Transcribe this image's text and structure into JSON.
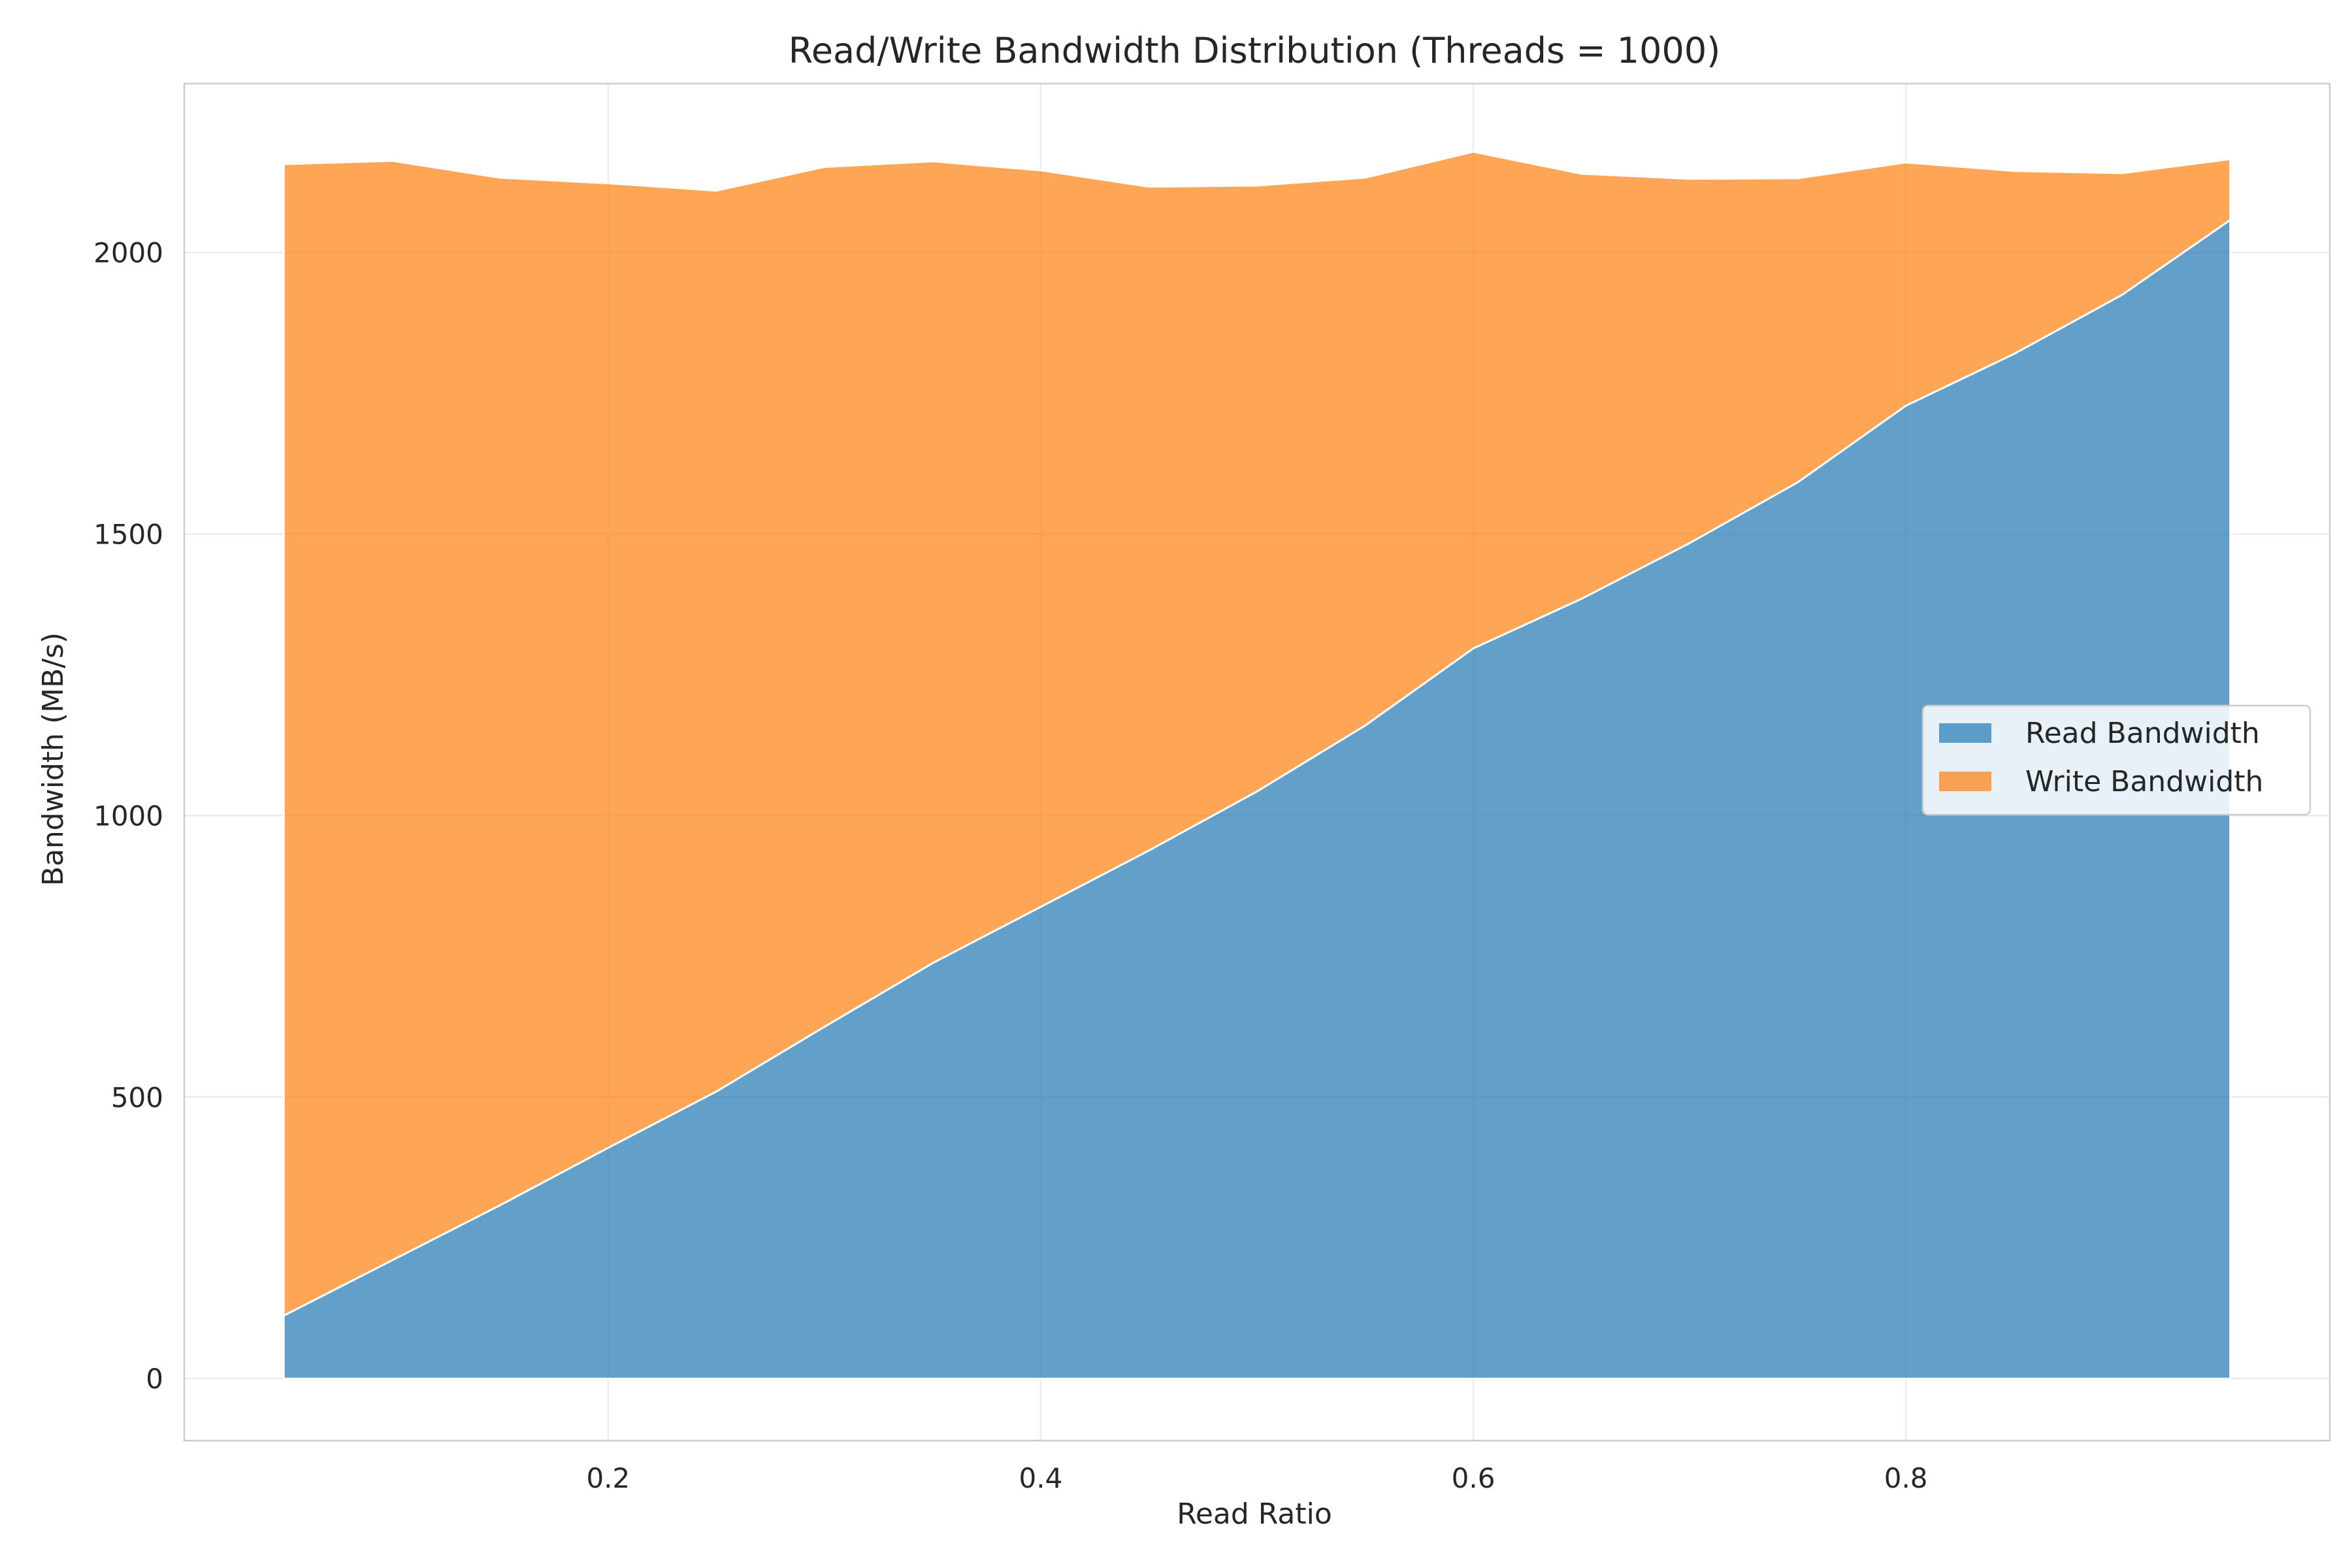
{
  "chart_data": {
    "type": "area",
    "stacked": true,
    "title": "Read/Write Bandwidth Distribution (Threads = 1000)",
    "xlabel": "Read Ratio",
    "ylabel": "Bandwidth (MB/s)",
    "x": [
      0.05,
      0.1,
      0.15,
      0.2,
      0.25,
      0.3,
      0.35,
      0.4,
      0.45,
      0.5,
      0.55,
      0.6,
      0.65,
      0.7,
      0.75,
      0.8,
      0.85,
      0.9,
      0.95
    ],
    "series": [
      {
        "name": "Read Bandwidth",
        "color": "#1f77b4",
        "values": [
          112,
          210,
          308,
          410,
          510,
          625,
          738,
          838,
          938,
          1043,
          1160,
          1297,
          1385,
          1484,
          1592,
          1728,
          1820,
          1925,
          2058
        ]
      },
      {
        "name": "Write Bandwidth",
        "color": "#ff7f0e",
        "values": [
          2045,
          1953,
          1825,
          1713,
          1600,
          1527,
          1424,
          1308,
          1179,
          1076,
          973,
          882,
          755,
          647,
          540,
          432,
          325,
          216,
          108
        ]
      }
    ],
    "xlim": [
      0.004,
      0.996
    ],
    "ylim": [
      -110,
      2300
    ],
    "xticks": [
      {
        "value": 0.2,
        "label": "0.2"
      },
      {
        "value": 0.4,
        "label": "0.4"
      },
      {
        "value": 0.6,
        "label": "0.6"
      },
      {
        "value": 0.8,
        "label": "0.8"
      }
    ],
    "yticks": [
      {
        "value": 0,
        "label": "0"
      },
      {
        "value": 500,
        "label": "500"
      },
      {
        "value": 1000,
        "label": "1000"
      },
      {
        "value": 1500,
        "label": "1500"
      },
      {
        "value": 2000,
        "label": "2000"
      }
    ],
    "grid": true,
    "legend_position": "center-right"
  }
}
